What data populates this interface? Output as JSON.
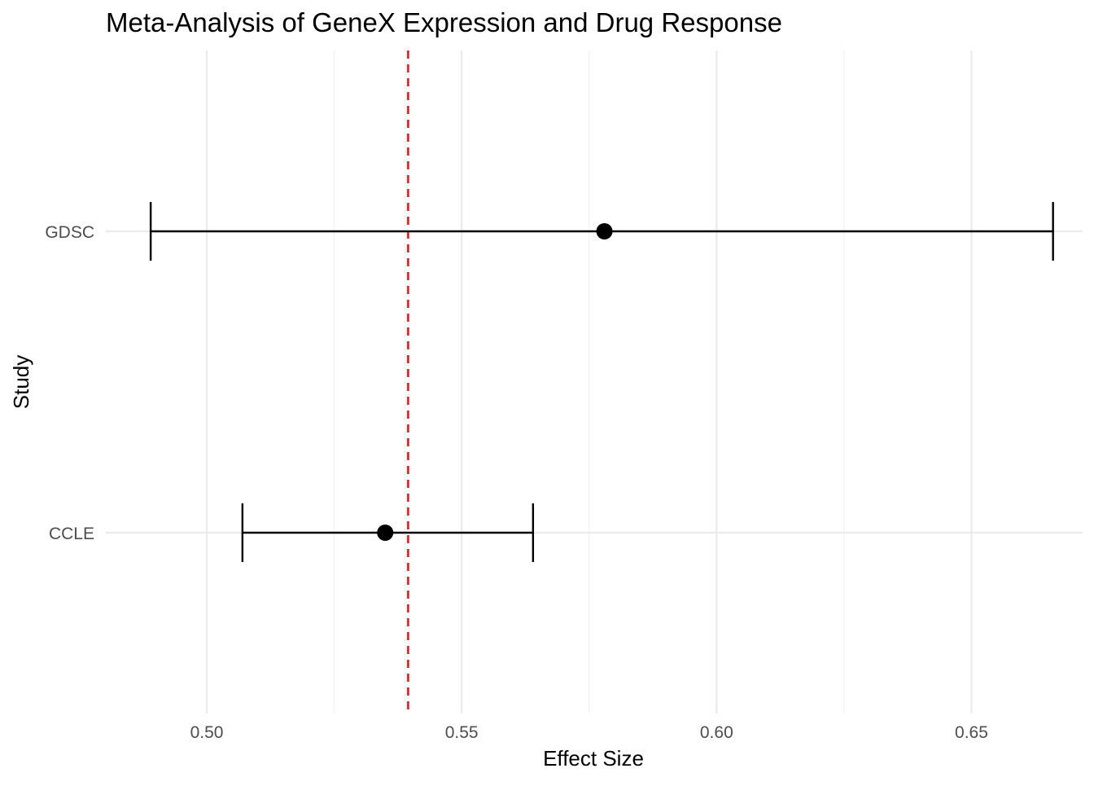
{
  "chart_data": {
    "type": "forest",
    "title": "Meta-Analysis of GeneX Expression and Drug Response",
    "xlabel": "Effect Size",
    "ylabel": "Study",
    "xlim": [
      0.4802,
      0.6718
    ],
    "x_ticks": [
      0.5,
      0.55,
      0.6,
      0.65
    ],
    "x_tick_labels": [
      "0.50",
      "0.55",
      "0.60",
      "0.65"
    ],
    "categories": [
      "CCLE",
      "GDSC"
    ],
    "studies": [
      {
        "name": "CCLE",
        "estimate": 0.535,
        "lower": 0.507,
        "upper": 0.564
      },
      {
        "name": "GDSC",
        "estimate": 0.578,
        "lower": 0.489,
        "upper": 0.666
      }
    ],
    "reference_line": {
      "x": 0.5395,
      "style": "dashed"
    },
    "grid": true,
    "legend": "none",
    "colors": {
      "background": "#ffffff",
      "grid_major": "#ebebeb",
      "grid_minor": "#f4f4f4",
      "point": "#000000",
      "errorbar": "#000000",
      "reference_line": "#ff0000",
      "text": "#000000",
      "tick_text": "#4d4d4d"
    }
  }
}
